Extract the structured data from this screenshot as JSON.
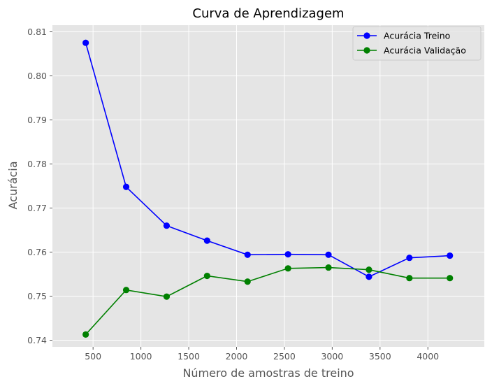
{
  "chart_data": {
    "type": "line",
    "title": "Curva de Aprendizagem",
    "xlabel": "Número de amostras de treino",
    "ylabel": "Acurácia",
    "xlim": [
      75,
      4590
    ],
    "ylim": [
      0.7385,
      0.8115
    ],
    "xticks": [
      500,
      1000,
      1500,
      2000,
      2500,
      3000,
      3500,
      4000
    ],
    "yticks": [
      0.74,
      0.75,
      0.76,
      0.77,
      0.78,
      0.79,
      0.8,
      0.81
    ],
    "x": [
      423,
      846,
      1269,
      1692,
      2115,
      2538,
      2961,
      3384,
      3807,
      4230
    ],
    "series": [
      {
        "name": "Acurácia Treino",
        "color": "#0000ff",
        "values": [
          0.8075,
          0.7748,
          0.766,
          0.7626,
          0.7594,
          0.7595,
          0.7594,
          0.7544,
          0.7587,
          0.7592
        ]
      },
      {
        "name": "Acurácia Validação",
        "color": "#008000",
        "values": [
          0.7413,
          0.7514,
          0.7499,
          0.7546,
          0.7533,
          0.7563,
          0.7565,
          0.756,
          0.7541,
          0.7541
        ]
      }
    ],
    "grid": true,
    "legend_position": "top-right",
    "background_color": "#e5e5e5"
  }
}
